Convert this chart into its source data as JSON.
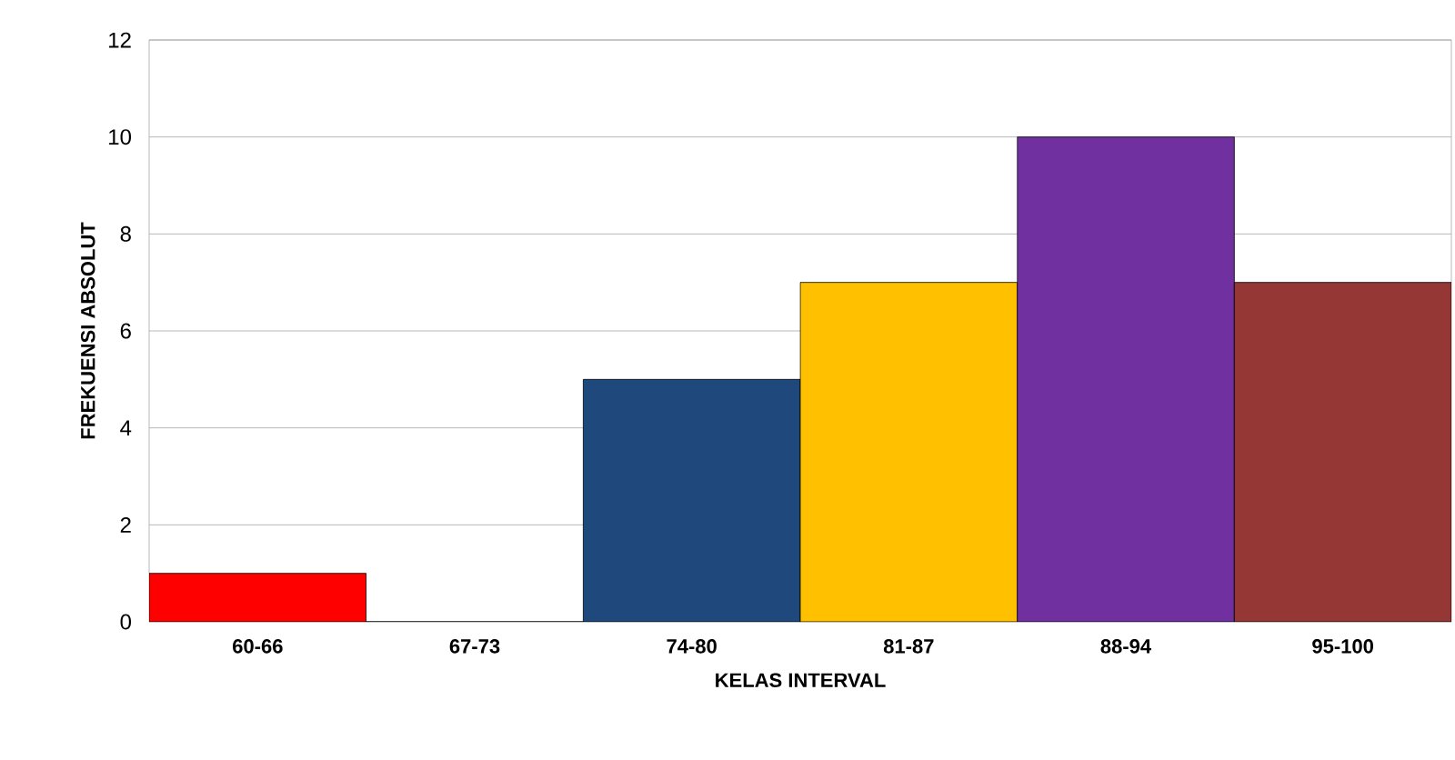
{
  "chart_data": {
    "type": "bar",
    "xlabel": "KELAS INTERVAL",
    "ylabel": "FREKUENSI ABSOLUT",
    "categories": [
      "60-66",
      "67-73",
      "74-80",
      "81-87",
      "88-94",
      "95-100"
    ],
    "values": [
      1,
      0,
      5,
      7,
      10,
      7
    ],
    "colors": [
      "#ff0000",
      "#ffffff",
      "#1f497d",
      "#ffc000",
      "#7030a0",
      "#953735"
    ],
    "ylim": [
      0,
      12
    ],
    "yticks": [
      0,
      2,
      4,
      6,
      8,
      10,
      12
    ],
    "grid": "y"
  }
}
